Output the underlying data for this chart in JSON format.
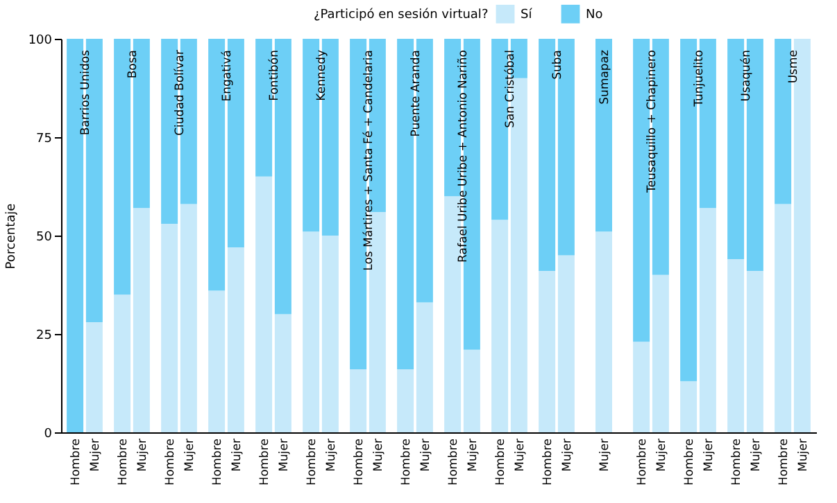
{
  "chart_data": [
    {
      "type": "bar",
      "stacked": true,
      "title": "Barrios Unidos",
      "ylabel": "Porcentaje",
      "legend_title": "¿Participó en sesión virtual?",
      "legend": "top right",
      "categories": [
        "Hombre",
        "Mujer"
      ],
      "ylim": [
        0,
        100
      ],
      "yticks": [
        0,
        25,
        50,
        75,
        100
      ],
      "series": [
        {
          "name": "Sí",
          "color": "#c6e9fa",
          "values": [
            0,
            28
          ]
        },
        {
          "name": "No",
          "color": "#6dcff6",
          "values": [
            100,
            72
          ]
        }
      ]
    },
    {
      "type": "bar",
      "stacked": true,
      "title": "Bosa",
      "categories": [
        "Hombre",
        "Mujer"
      ],
      "ylim": [
        0,
        100
      ],
      "yticks": [
        0,
        25,
        50,
        75,
        100
      ],
      "tick_labels": "x",
      "series": [
        {
          "color": "#c6e9fa",
          "values": [
            35,
            57
          ]
        },
        {
          "color": "#6dcff6",
          "values": [
            65,
            43
          ]
        }
      ]
    },
    {
      "type": "bar",
      "stacked": true,
      "title": "Ciudad Bolívar",
      "categories": [
        "Hombre",
        "Mujer"
      ],
      "ylim": [
        0,
        100
      ],
      "yticks": [
        0,
        25,
        50,
        75,
        100
      ],
      "tick_labels": "x",
      "series": [
        {
          "color": "#c6e9fa",
          "values": [
            53,
            58
          ]
        },
        {
          "color": "#6dcff6",
          "values": [
            47,
            42
          ]
        }
      ]
    },
    {
      "type": "bar",
      "stacked": true,
      "title": "Engativá",
      "categories": [
        "Hombre",
        "Mujer"
      ],
      "ylim": [
        0,
        100
      ],
      "yticks": [
        0,
        25,
        50,
        75,
        100
      ],
      "tick_labels": "x",
      "series": [
        {
          "color": "#c6e9fa",
          "values": [
            36,
            47
          ]
        },
        {
          "color": "#6dcff6",
          "values": [
            64,
            53
          ]
        }
      ]
    },
    {
      "type": "bar",
      "stacked": true,
      "title": "Fontibón",
      "categories": [
        "Hombre",
        "Mujer"
      ],
      "ylim": [
        0,
        100
      ],
      "yticks": [
        0,
        25,
        50,
        75,
        100
      ],
      "tick_labels": "x",
      "series": [
        {
          "color": "#c6e9fa",
          "values": [
            65,
            30
          ]
        },
        {
          "color": "#6dcff6",
          "values": [
            35,
            70
          ]
        }
      ]
    },
    {
      "type": "bar",
      "stacked": true,
      "title": "Kennedy",
      "categories": [
        "Hombre",
        "Mujer"
      ],
      "ylim": [
        0,
        100
      ],
      "yticks": [
        0,
        25,
        50,
        75,
        100
      ],
      "tick_labels": "x",
      "series": [
        {
          "color": "#c6e9fa",
          "values": [
            51,
            50
          ]
        },
        {
          "color": "#6dcff6",
          "values": [
            49,
            50
          ]
        }
      ]
    },
    {
      "type": "bar",
      "stacked": true,
      "title": "Los Mártires + Santa Fé + Candelaria",
      "categories": [
        "Hombre",
        "Mujer"
      ],
      "ylim": [
        0,
        100
      ],
      "yticks": [
        0,
        25,
        50,
        75,
        100
      ],
      "tick_labels": "x",
      "series": [
        {
          "color": "#c6e9fa",
          "values": [
            16,
            56
          ]
        },
        {
          "color": "#6dcff6",
          "values": [
            84,
            44
          ]
        }
      ]
    },
    {
      "type": "bar",
      "stacked": true,
      "title": "Puente Aranda",
      "categories": [
        "Hombre",
        "Mujer"
      ],
      "ylim": [
        0,
        100
      ],
      "yticks": [
        0,
        25,
        50,
        75,
        100
      ],
      "tick_labels": "x",
      "series": [
        {
          "color": "#c6e9fa",
          "values": [
            16,
            33
          ]
        },
        {
          "color": "#6dcff6",
          "values": [
            84,
            67
          ]
        }
      ]
    },
    {
      "type": "bar",
      "stacked": true,
      "title": "Rafael Uribe Uribe + Antonio Nariño",
      "categories": [
        "Hombre",
        "Mujer"
      ],
      "ylim": [
        0,
        100
      ],
      "yticks": [
        0,
        25,
        50,
        75,
        100
      ],
      "tick_labels": "x",
      "series": [
        {
          "color": "#c6e9fa",
          "values": [
            60,
            21
          ]
        },
        {
          "color": "#6dcff6",
          "values": [
            40,
            79
          ]
        }
      ]
    },
    {
      "type": "bar",
      "stacked": true,
      "title": "San Cristóbal",
      "categories": [
        "Hombre",
        "Mujer"
      ],
      "ylim": [
        0,
        100
      ],
      "yticks": [
        0,
        25,
        50,
        75,
        100
      ],
      "tick_labels": "x",
      "series": [
        {
          "color": "#c6e9fa",
          "values": [
            54,
            90
          ]
        },
        {
          "color": "#6dcff6",
          "values": [
            46,
            10
          ]
        }
      ]
    },
    {
      "type": "bar",
      "stacked": true,
      "title": "Suba",
      "categories": [
        "Hombre",
        "Mujer"
      ],
      "ylim": [
        0,
        100
      ],
      "yticks": [
        0,
        25,
        50,
        75,
        100
      ],
      "tick_labels": "x",
      "series": [
        {
          "color": "#c6e9fa",
          "values": [
            41,
            45
          ]
        },
        {
          "color": "#6dcff6",
          "values": [
            59,
            55
          ]
        }
      ]
    },
    {
      "type": "bar",
      "stacked": true,
      "title": "Sumapaz",
      "categories": [
        "Mujer"
      ],
      "ylim": [
        0,
        100
      ],
      "yticks": [
        0,
        25,
        50,
        75,
        100
      ],
      "tick_labels": "x",
      "series": [
        {
          "color": "#c6e9fa",
          "values": [
            51
          ]
        },
        {
          "color": "#6dcff6",
          "values": [
            49
          ]
        }
      ]
    },
    {
      "type": "bar",
      "stacked": true,
      "title": "Teusaquillo + Chapinero",
      "categories": [
        "Hombre",
        "Mujer"
      ],
      "ylim": [
        0,
        100
      ],
      "yticks": [
        0,
        25,
        50,
        75,
        100
      ],
      "tick_labels": "x",
      "series": [
        {
          "color": "#c6e9fa",
          "values": [
            23,
            40
          ]
        },
        {
          "color": "#6dcff6",
          "values": [
            77,
            60
          ]
        }
      ]
    },
    {
      "type": "bar",
      "stacked": true,
      "title": "Tunjuelito",
      "categories": [
        "Hombre",
        "Mujer"
      ],
      "ylim": [
        0,
        100
      ],
      "yticks": [
        0,
        25,
        50,
        75,
        100
      ],
      "tick_labels": "x",
      "series": [
        {
          "color": "#c6e9fa",
          "values": [
            13,
            57
          ]
        },
        {
          "color": "#6dcff6",
          "values": [
            87,
            43
          ]
        }
      ]
    },
    {
      "type": "bar",
      "stacked": true,
      "title": "Usaquén",
      "categories": [
        "Hombre",
        "Mujer"
      ],
      "ylim": [
        0,
        100
      ],
      "yticks": [
        0,
        25,
        50,
        75,
        100
      ],
      "tick_labels": "x",
      "series": [
        {
          "color": "#c6e9fa",
          "values": [
            44,
            41
          ]
        },
        {
          "color": "#6dcff6",
          "values": [
            56,
            59
          ]
        }
      ]
    },
    {
      "type": "bar",
      "stacked": true,
      "title": "Usme",
      "categories": [
        "Hombre",
        "Mujer"
      ],
      "ylim": [
        0,
        100
      ],
      "yticks": [
        0,
        25,
        50,
        75,
        100
      ],
      "tick_labels": "x",
      "series": [
        {
          "color": "#c6e9fa",
          "values": [
            58,
            100
          ]
        },
        {
          "color": "#6dcff6",
          "values": [
            42,
            0
          ]
        }
      ]
    }
  ]
}
